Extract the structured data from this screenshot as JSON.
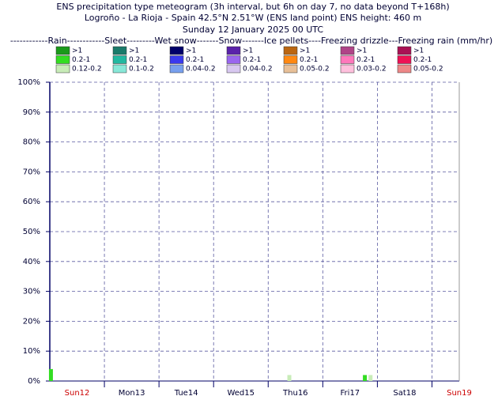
{
  "chart_data": {
    "type": "bar",
    "title": "ENS precipitation type meteogram (3h interval, but 6h on day 7, no data beyond T+168h)",
    "subtitle": "Logroño - La Rioja - Spain 42.5°N 2.51°W (ENS land point) ENS height: 460 m",
    "date": "Sunday 12 January 2025 00 UTC",
    "legend_title": "------------Rain------------Sleet---------Wet snow-------Snow-------Ice pellets----Freezing drizzle---Freezing rain (mm/hr)",
    "xlim": [
      0,
      180
    ],
    "xticks": [
      {
        "value": 12,
        "label": "Sun12"
      },
      {
        "value": 36,
        "label": "Mon13"
      },
      {
        "value": 60,
        "label": "Tue14"
      },
      {
        "value": 84,
        "label": "Wed15"
      },
      {
        "value": 108,
        "label": "Thu16"
      },
      {
        "value": 132,
        "label": "Fri17"
      },
      {
        "value": 156,
        "label": "Sat18"
      },
      {
        "value": 180,
        "label": "Sun19"
      }
    ],
    "xtick_colors": [
      "#cc0000",
      "#000033",
      "#000033",
      "#000033",
      "#000033",
      "#000033",
      "#000033",
      "#cc0000"
    ],
    "xgrid": [
      24,
      48,
      72,
      96,
      120,
      144,
      168
    ],
    "ylim": [
      0,
      100
    ],
    "yticks": [
      {
        "value": 0,
        "label": "0%"
      },
      {
        "value": 10,
        "label": "10%"
      },
      {
        "value": 20,
        "label": "20%"
      },
      {
        "value": 30,
        "label": "30%"
      },
      {
        "value": 40,
        "label": "40%"
      },
      {
        "value": 50,
        "label": "50%"
      },
      {
        "value": 60,
        "label": "60%"
      },
      {
        "value": 70,
        "label": "70%"
      },
      {
        "value": 80,
        "label": "80%"
      },
      {
        "value": 90,
        "label": "90%"
      },
      {
        "value": 100,
        "label": "100%"
      }
    ],
    "grid": true,
    "series": [
      {
        "name": ">1",
        "color": "#1a9a1a",
        "x": [],
        "values": []
      },
      {
        "name": "0.2-1",
        "color": "#33dd22",
        "x": [
          0.5,
          138.5
        ],
        "values": [
          4,
          2
        ]
      },
      {
        "name": "0.12-0.2",
        "color": "#c8ecb8",
        "x": [
          105.3,
          141
        ],
        "values": [
          2,
          2
        ]
      },
      {
        "name": ">1",
        "color": "#1a7a6a",
        "x": [],
        "values": []
      },
      {
        "name": "0.2-1",
        "color": "#22b8a0",
        "x": [],
        "values": []
      },
      {
        "name": "0.1-0.2",
        "color": "#88e8d8",
        "x": [],
        "values": []
      },
      {
        "name": ">1",
        "color": "#00006a",
        "x": [],
        "values": []
      },
      {
        "name": "0.2-1",
        "color": "#3a3aee",
        "x": [],
        "values": []
      },
      {
        "name": "0.04-0.2",
        "color": "#78a0ee",
        "x": [],
        "values": []
      },
      {
        "name": ">1",
        "color": "#5a22aa",
        "x": [],
        "values": []
      },
      {
        "name": "0.2-1",
        "color": "#9a66ee",
        "x": [],
        "values": []
      },
      {
        "name": "0.04-0.2",
        "color": "#d8c8f0",
        "x": [],
        "values": []
      },
      {
        "name": ">1",
        "color": "#bb6611",
        "x": [],
        "values": []
      },
      {
        "name": "0.2-1",
        "color": "#ff8811",
        "x": [],
        "values": []
      },
      {
        "name": "0.05-0.2",
        "color": "#e8c098",
        "x": [],
        "values": []
      },
      {
        "name": ">1",
        "color": "#b04488",
        "x": [],
        "values": []
      },
      {
        "name": "0.2-1",
        "color": "#ff77bb",
        "x": [],
        "values": []
      },
      {
        "name": "0.03-0.2",
        "color": "#ffc0dd",
        "x": [],
        "values": []
      },
      {
        "name": ">1",
        "color": "#aa1155",
        "x": [],
        "values": []
      },
      {
        "name": "0.2-1",
        "color": "#ee1155",
        "x": [],
        "values": []
      },
      {
        "name": "0.05-0.2",
        "color": "#ee8888",
        "x": [],
        "values": []
      }
    ]
  }
}
